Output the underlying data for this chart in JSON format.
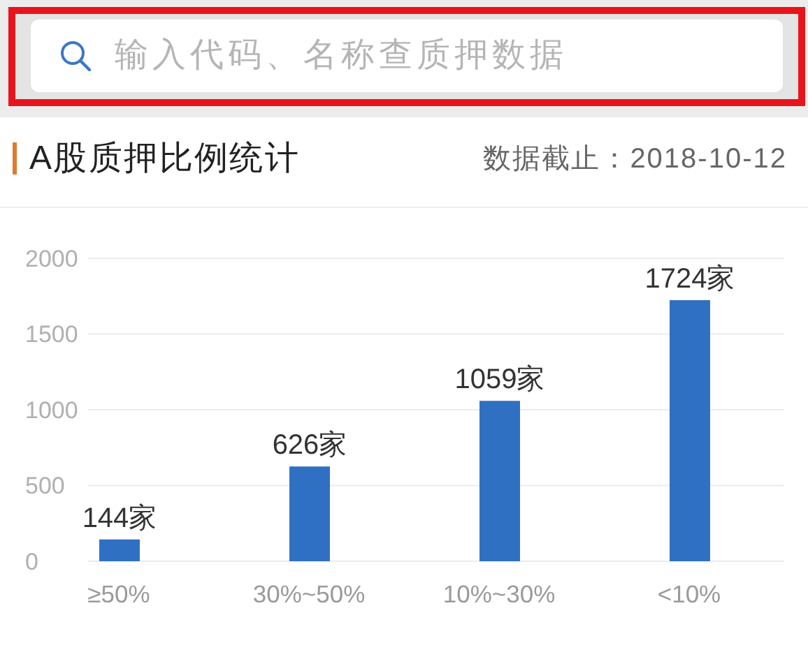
{
  "chart_data": {
    "type": "bar",
    "title": "A股质押比例统计",
    "subtitle": "数据截止：2018-10-12",
    "annotations": [
      "输入代码、名称查质押数据"
    ],
    "categories": [
      "≥50%",
      "30%~50%",
      "10%~30%",
      "<10%"
    ],
    "values": [
      144,
      626,
      1059,
      1724
    ],
    "color": "#3070c2",
    "value_labels": [
      "144家",
      "626家",
      "1059家",
      "1724家"
    ],
    "ylim": [
      0,
      2000
    ],
    "yticks": [
      0,
      500,
      1000,
      1500,
      2000
    ],
    "grid": "y"
  }
}
